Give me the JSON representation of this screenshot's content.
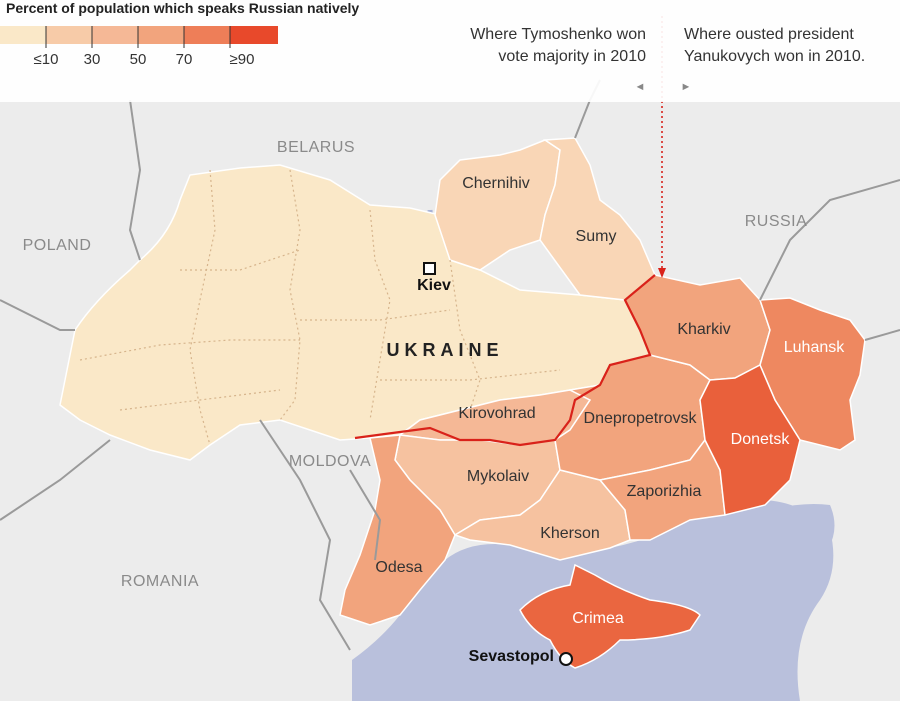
{
  "legend": {
    "title": "Percent of population which speaks Russian natively",
    "ticks": [
      "≤10",
      "30",
      "50",
      "70",
      "≥90"
    ],
    "colors": [
      "#fae8c8",
      "#f7cba8",
      "#f2a47d",
      "#ee7e58",
      "#e8492b"
    ]
  },
  "annotations": {
    "tymoshenko_line1": "Where Tymoshenko won",
    "tymoshenko_line2": "vote majority in 2010",
    "yanukovych_line1": "Where ousted president",
    "yanukovych_line2": "Yanukovych won in 2010.",
    "arrow_left": "◄",
    "arrow_right": "►",
    "divider_color": "#e53a22"
  },
  "countries": {
    "belarus": "BELARUS",
    "poland": "POLAND",
    "russia": "RUSSIA",
    "moldova": "MOLDOVA",
    "romania": "ROMANIA",
    "ukraine": "UKRAINE"
  },
  "regions": {
    "chernihiv": "Chernihiv",
    "sumy": "Sumy",
    "kharkiv": "Kharkiv",
    "luhansk": "Luhansk",
    "donetsk": "Donetsk",
    "dnepropetrovsk": "Dnepropetrovsk",
    "kirovohrad": "Kirovohrad",
    "mykolaiv": "Mykolaiv",
    "zaporizhia": "Zaporizhia",
    "kherson": "Kherson",
    "odesa": "Odesa",
    "crimea": "Crimea"
  },
  "cities": {
    "kiev": "Kiev",
    "sevastopol": "Sevastopol"
  }
}
